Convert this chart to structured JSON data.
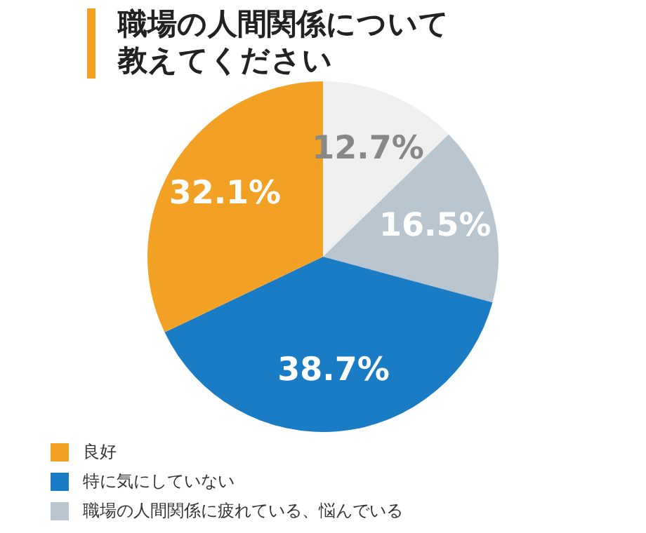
{
  "chart_data": {
    "type": "pie",
    "title": "職場の人間関係について教えてください",
    "categories": [
      null,
      "職場の人間関係に疲れている、悩んでいる",
      "特に気にしていない",
      "良好"
    ],
    "values": [
      12.7,
      16.5,
      38.7,
      32.1
    ],
    "colors": [
      "#efefef",
      "#b9c6cf",
      "#1a7cc4",
      "#f2a124"
    ],
    "value_labels": [
      "12.7%",
      "16.5%",
      "38.7%",
      "32.1%"
    ],
    "legend": "bottom left"
  }
}
